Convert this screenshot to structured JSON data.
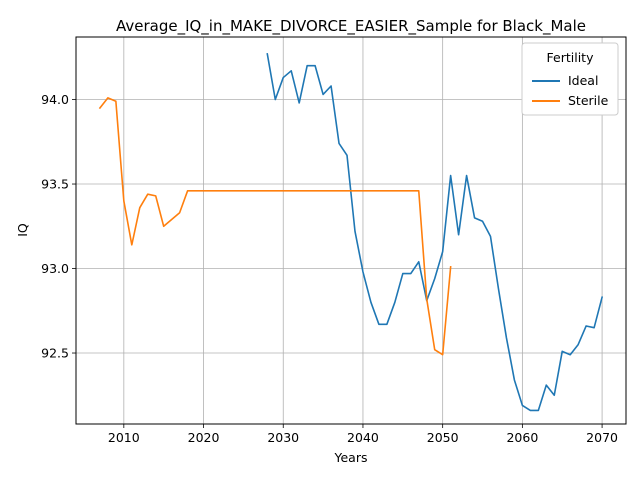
{
  "chart_data": {
    "type": "line",
    "title": "Average_IQ_in_MAKE_DIVORCE_EASIER_Sample for Black_Male",
    "xlabel": "Years",
    "ylabel": "IQ",
    "xlim": [
      2004,
      2073
    ],
    "ylim": [
      92.08,
      94.37
    ],
    "xticks": [
      2010,
      2020,
      2030,
      2040,
      2050,
      2060,
      2070
    ],
    "yticks": [
      92.5,
      93.0,
      93.5,
      94.0
    ],
    "ytick_labels": [
      "92.5",
      "93.0",
      "93.5",
      "94.0"
    ],
    "grid": true,
    "legend": {
      "title": "Fertility",
      "placement": "top-right"
    },
    "series": [
      {
        "name": "Ideal",
        "color": "#1f77b4",
        "points": [
          [
            2028,
            94.27
          ],
          [
            2029,
            94.0
          ],
          [
            2030,
            94.13
          ],
          [
            2031,
            94.17
          ],
          [
            2032,
            93.98
          ],
          [
            2033,
            94.2
          ],
          [
            2034,
            94.2
          ],
          [
            2035,
            94.03
          ],
          [
            2036,
            94.08
          ],
          [
            2037,
            93.74
          ],
          [
            2038,
            93.67
          ],
          [
            2039,
            93.22
          ],
          [
            2040,
            92.98
          ],
          [
            2041,
            92.8
          ],
          [
            2042,
            92.67
          ],
          [
            2043,
            92.67
          ],
          [
            2044,
            92.8
          ],
          [
            2045,
            92.97
          ],
          [
            2046,
            92.97
          ],
          [
            2047,
            93.04
          ],
          [
            2048,
            92.81
          ],
          [
            2049,
            92.94
          ],
          [
            2050,
            93.1
          ],
          [
            2051,
            93.55
          ],
          [
            2052,
            93.2
          ],
          [
            2053,
            93.55
          ],
          [
            2054,
            93.3
          ],
          [
            2055,
            93.28
          ],
          [
            2056,
            93.19
          ],
          [
            2057,
            92.88
          ],
          [
            2058,
            92.59
          ],
          [
            2059,
            92.34
          ],
          [
            2060,
            92.19
          ],
          [
            2061,
            92.16
          ],
          [
            2062,
            92.16
          ],
          [
            2063,
            92.31
          ],
          [
            2064,
            92.25
          ],
          [
            2065,
            92.51
          ],
          [
            2066,
            92.49
          ],
          [
            2067,
            92.55
          ],
          [
            2068,
            92.66
          ],
          [
            2069,
            92.65
          ],
          [
            2070,
            92.83
          ]
        ]
      },
      {
        "name": "Sterile",
        "color": "#ff7f0e",
        "points": [
          [
            2007,
            93.95
          ],
          [
            2008,
            94.01
          ],
          [
            2009,
            93.99
          ],
          [
            2010,
            93.4
          ],
          [
            2011,
            93.14
          ],
          [
            2012,
            93.36
          ],
          [
            2013,
            93.44
          ],
          [
            2014,
            93.43
          ],
          [
            2015,
            93.25
          ],
          [
            2016,
            93.29
          ],
          [
            2017,
            93.33
          ],
          [
            2018,
            93.46
          ],
          [
            2019,
            93.46
          ],
          [
            2020,
            93.46
          ],
          [
            2025,
            93.46
          ],
          [
            2030,
            93.46
          ],
          [
            2035,
            93.46
          ],
          [
            2040,
            93.46
          ],
          [
            2045,
            93.46
          ],
          [
            2047,
            93.46
          ],
          [
            2048,
            92.82
          ],
          [
            2049,
            92.52
          ],
          [
            2050,
            92.49
          ],
          [
            2051,
            93.01
          ]
        ]
      }
    ]
  }
}
